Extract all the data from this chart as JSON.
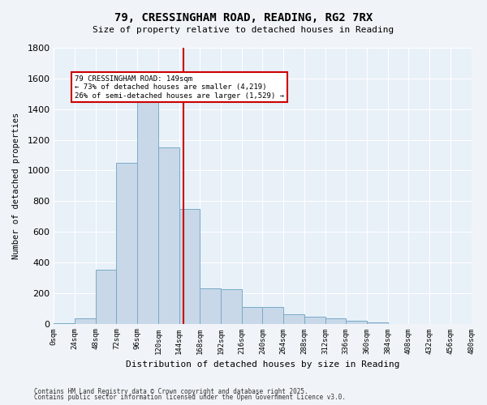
{
  "title": "79, CRESSINGHAM ROAD, READING, RG2 7RX",
  "subtitle": "Size of property relative to detached houses in Reading",
  "xlabel": "Distribution of detached houses by size in Reading",
  "ylabel": "Number of detached properties",
  "bar_color": "#c8d8e8",
  "bar_edge_color": "#7aaac8",
  "background_color": "#e8f0f8",
  "grid_color": "#ffffff",
  "annotation_box_color": "#cc0000",
  "property_line_color": "#cc0000",
  "property_size": 149,
  "annotation_text": "79 CRESSINGHAM ROAD: 149sqm\n← 73% of detached houses are smaller (4,219)\n26% of semi-detached houses are larger (1,529) →",
  "footnote1": "Contains HM Land Registry data © Crown copyright and database right 2025.",
  "footnote2": "Contains public sector information licensed under the Open Government Licence v3.0.",
  "bin_edges": [
    0,
    24,
    48,
    72,
    96,
    120,
    144,
    168,
    192,
    216,
    240,
    264,
    288,
    312,
    336,
    360,
    384,
    408,
    432,
    456,
    480
  ],
  "bin_labels": [
    "0sqm",
    "24sqm",
    "48sqm",
    "72sqm",
    "96sqm",
    "120sqm",
    "144sqm",
    "168sqm",
    "192sqm",
    "216sqm",
    "240sqm",
    "264sqm",
    "288sqm",
    "312sqm",
    "336sqm",
    "360sqm",
    "384sqm",
    "408sqm",
    "432sqm",
    "456sqm",
    "480sqm"
  ],
  "counts": [
    5,
    35,
    350,
    1050,
    1500,
    1150,
    750,
    230,
    225,
    110,
    110,
    60,
    45,
    35,
    20,
    10,
    0,
    0,
    0,
    0
  ],
  "ylim": [
    0,
    1800
  ],
  "yticks": [
    0,
    200,
    400,
    600,
    800,
    1000,
    1200,
    1400,
    1600,
    1800
  ]
}
